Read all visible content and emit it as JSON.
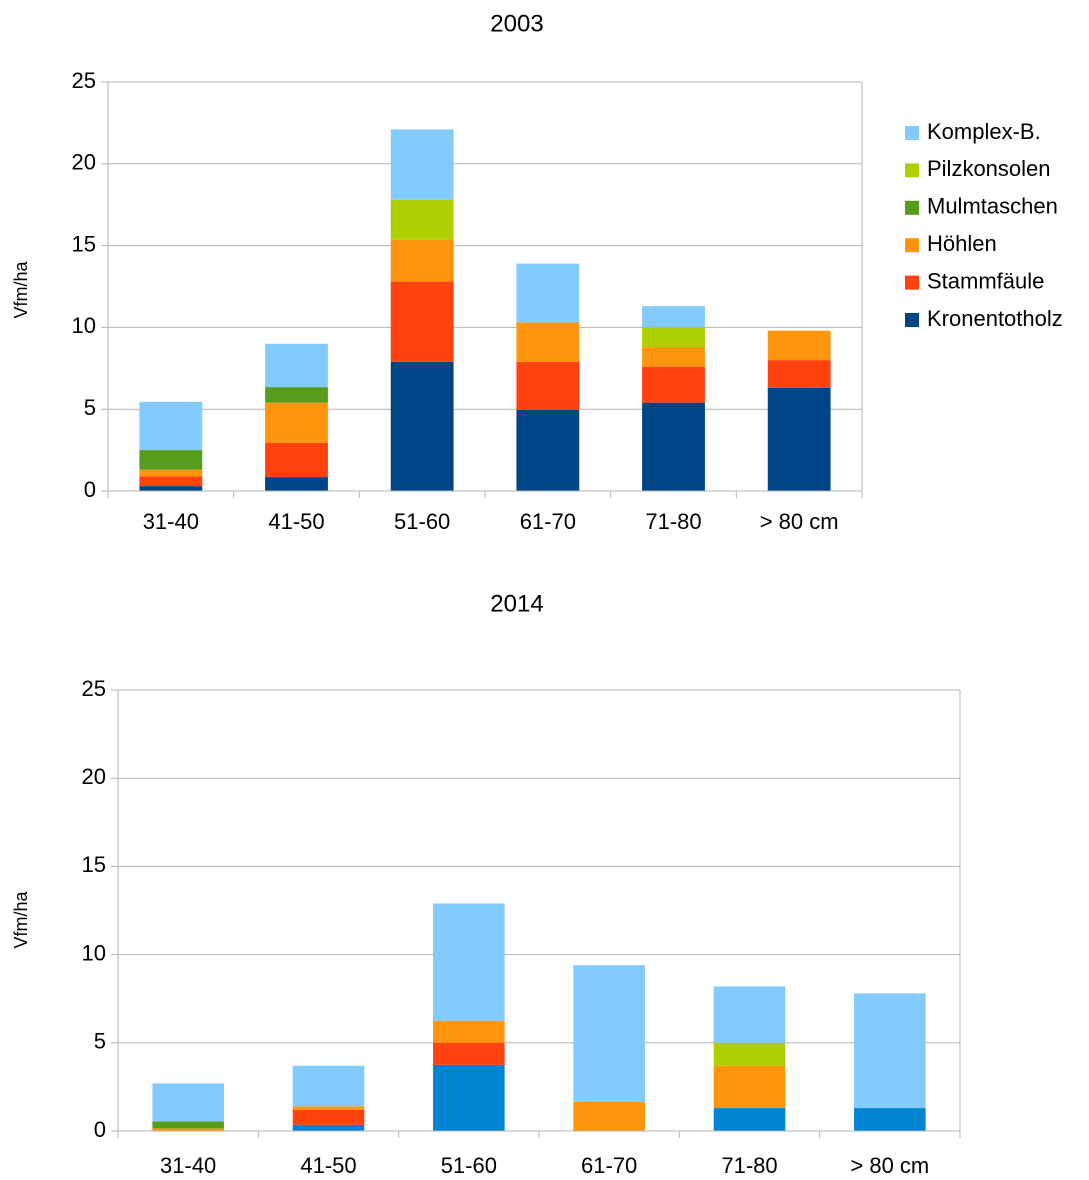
{
  "chart_data": [
    {
      "type": "stacked_bar",
      "title": "2003",
      "y_label": "Vfm/ha",
      "categories": [
        "31-40",
        "41-50",
        "51-60",
        "61-70",
        "71-80",
        "> 80 cm"
      ],
      "series": [
        {
          "name": "Kronentotholz",
          "color": "#004586",
          "values": [
            0.3,
            0.85,
            7.9,
            4.95,
            5.4,
            6.3
          ]
        },
        {
          "name": "Stammfäule",
          "color": "#ff420e",
          "values": [
            0.6,
            2.1,
            4.9,
            2.95,
            2.2,
            1.7
          ]
        },
        {
          "name": "Höhlen",
          "color": "#ff950e",
          "values": [
            0.4,
            2.45,
            2.55,
            2.4,
            1.2,
            1.8
          ]
        },
        {
          "name": "Mulmtaschen",
          "color": "#579d1c",
          "values": [
            1.2,
            0.95,
            0,
            0,
            0,
            0
          ]
        },
        {
          "name": "Pilzkonsolen",
          "color": "#aecf00",
          "values": [
            0,
            0,
            2.45,
            0,
            1.2,
            0
          ]
        },
        {
          "name": "Komplex-B.",
          "color": "#83caff",
          "values": [
            2.95,
            2.65,
            4.3,
            3.6,
            1.3,
            0
          ]
        }
      ],
      "ylim": [
        0,
        25
      ],
      "yticks": [
        0,
        5,
        10,
        15,
        20,
        25
      ],
      "grid": true,
      "legend": "right"
    },
    {
      "type": "stacked_bar",
      "title": "2014",
      "y_label": "Vfm/ha",
      "categories": [
        "31-40",
        "41-50",
        "51-60",
        "61-70",
        "71-80",
        "> 80 cm"
      ],
      "series": [
        {
          "color": "#0084d1",
          "values": [
            0,
            0.35,
            3.75,
            0,
            1.3,
            1.3
          ]
        },
        {
          "color": "#ff420e",
          "values": [
            0,
            0.85,
            1.25,
            0,
            0,
            0
          ]
        },
        {
          "color": "#ff950e",
          "values": [
            0.15,
            0.2,
            1.25,
            1.65,
            2.4,
            0
          ]
        },
        {
          "color": "#579d1c",
          "values": [
            0.4,
            0,
            0,
            0,
            0,
            0
          ]
        },
        {
          "color": "#aecf00",
          "values": [
            0,
            0,
            0,
            0,
            1.3,
            0
          ]
        },
        {
          "color": "#83caff",
          "values": [
            2.15,
            2.3,
            6.65,
            7.75,
            3.2,
            6.5
          ]
        }
      ],
      "ylim": [
        0,
        25
      ],
      "yticks": [
        0,
        5,
        10,
        15,
        20,
        25
      ],
      "grid": true
    }
  ]
}
